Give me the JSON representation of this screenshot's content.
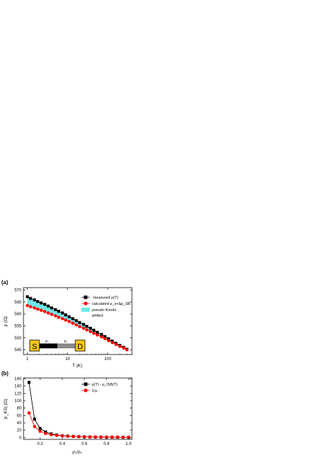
{
  "chart_data": [
    {
      "panel_label": "(a)",
      "type": "line",
      "x_scale": "log",
      "xlim": [
        0.8,
        400
      ],
      "ylim": [
        543,
        571
      ],
      "xlabel": "T (K)",
      "ylabel": "ρ (Ω)",
      "x_ticks": [
        1,
        10,
        100
      ],
      "x_tick_labels": [
        "1",
        "10",
        "100"
      ],
      "y_ticks": [
        545,
        550,
        555,
        560,
        565,
        570
      ],
      "y_tick_labels": [
        "545",
        "550",
        "555",
        "560",
        "565",
        "570"
      ],
      "legend_position": "top-right",
      "series": [
        {
          "name": "`measured`ρ(T)",
          "color": "#000000",
          "marker": "square",
          "x": [
            1,
            1.2,
            1.5,
            1.8,
            2.2,
            2.7,
            3.3,
            4,
            5,
            6,
            7.5,
            9,
            11,
            13.5,
            16.5,
            20,
            25,
            30,
            37,
            45,
            55,
            70,
            85,
            105,
            130,
            160,
            200,
            250,
            300
          ],
          "y": [
            567.2,
            566.5,
            565.9,
            565.2,
            564.6,
            564,
            563.3,
            562.5,
            561.8,
            561.1,
            560.4,
            559.6,
            558.8,
            558,
            557.2,
            556.4,
            555.6,
            554.8,
            554,
            553.2,
            552.3,
            551.4,
            550.5,
            549.6,
            548.6,
            547.7,
            546.8,
            546,
            545.2
          ]
        },
        {
          "name": "calculated ρ_s+Δρ_SB",
          "color": "#ff0000",
          "marker": "circle",
          "x": [
            1,
            1.2,
            1.5,
            1.8,
            2.2,
            2.7,
            3.3,
            4,
            5,
            6,
            7.5,
            9,
            11,
            13.5,
            16.5,
            20,
            25,
            30,
            37,
            45,
            55,
            70,
            85,
            105,
            130,
            160,
            200,
            250,
            300
          ],
          "y": [
            563.5,
            563,
            562.5,
            562,
            561.5,
            561,
            560.4,
            559.8,
            559.2,
            558.6,
            558,
            557.4,
            556.8,
            556.1,
            555.4,
            554.7,
            554,
            553.3,
            552.6,
            551.9,
            551.2,
            550.4,
            549.6,
            548.8,
            548,
            547.2,
            546.4,
            545.7,
            545
          ]
        }
      ],
      "band": {
        "name": "pseudo Kondo artifact",
        "label_line1": "pseudo Kondo",
        "label_line2": "artifact",
        "color": "#70e8ea"
      },
      "inset": {
        "source_label": "S",
        "drain_label": "D",
        "rho1_label": "ρ₁",
        "rho2_label": "ρ₂",
        "pad_color": "#f5c518",
        "segment1_color": "#000000",
        "segment2_color": "#8a8a8a"
      }
    },
    {
      "panel_label": "(b)",
      "type": "line",
      "xlim": [
        0.05,
        1.03
      ],
      "ylim": [
        -5,
        162
      ],
      "xlabel": "ρ₁/ρ₂",
      "ylabel": "|ε_KS| (Ω)",
      "x_ticks": [
        0.2,
        0.4,
        0.6,
        0.8,
        1.0
      ],
      "x_tick_labels": [
        "0.2",
        "0.4",
        "0.6",
        "0.8",
        "1.0"
      ],
      "y_ticks": [
        0,
        20,
        40,
        60,
        80,
        100,
        120,
        140,
        160
      ],
      "y_tick_labels": [
        "0",
        "20",
        "40",
        "60",
        "80",
        "100",
        "120",
        "140",
        "160"
      ],
      "legend_position": "top-right",
      "series": [
        {
          "name": "ρ(T) - ρ_ISB(T)",
          "color": "#000000",
          "marker": "square",
          "x": [
            0.1,
            0.15,
            0.2,
            0.25,
            0.3,
            0.35,
            0.4,
            0.45,
            0.5,
            0.55,
            0.6,
            0.65,
            0.7,
            0.75,
            0.8,
            0.85,
            0.9,
            0.95,
            1.0
          ],
          "y": [
            150,
            50,
            25,
            15,
            10,
            7,
            5,
            4,
            3,
            2.5,
            2,
            1.6,
            1.3,
            1.1,
            1,
            0.9,
            0.8,
            0.7,
            0.6
          ]
        },
        {
          "name": "1/μ",
          "color": "#ff0000",
          "marker": "circle",
          "x": [
            0.1,
            0.15,
            0.2,
            0.25,
            0.3,
            0.35,
            0.4,
            0.45,
            0.5,
            0.55,
            0.6,
            0.65,
            0.7,
            0.75,
            0.8,
            0.85,
            0.9,
            0.95,
            1.0
          ],
          "y": [
            67,
            30,
            17,
            11,
            8,
            6,
            4.5,
            3.5,
            3,
            2.5,
            2,
            1.7,
            1.5,
            1.3,
            1.2,
            1.1,
            1,
            0.9,
            0.8
          ]
        }
      ]
    }
  ]
}
